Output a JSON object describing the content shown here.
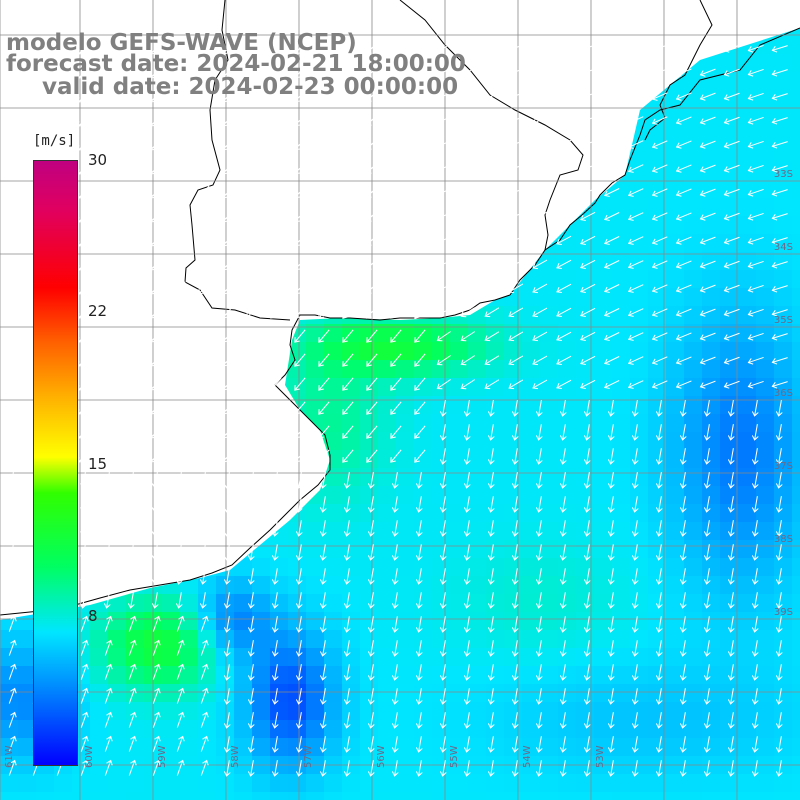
{
  "header": {
    "title": "modelo GEFS-WAVE (NCEP)",
    "forecast_date": "forecast date: 2024-02-21 18:00:00",
    "valid_date": "valid date: 2024-02-23 00:00:00"
  },
  "colorbar": {
    "unit": "[m/s]",
    "ticks": [
      "30",
      "22",
      "15",
      "8"
    ],
    "tick_values": [
      30,
      22,
      15,
      8
    ],
    "range": [
      0,
      30
    ],
    "colors": [
      "#0000ff",
      "#0096ff",
      "#00e6ff",
      "#00ff60",
      "#30ff00",
      "#ffff00",
      "#ff6000",
      "#ff0000",
      "#c00080"
    ]
  },
  "map": {
    "lat_labels": [
      "33S",
      "34S",
      "35S",
      "36S",
      "37S",
      "38S",
      "39S"
    ],
    "lon_labels": [
      "61W",
      "60W",
      "59W",
      "58W",
      "57W",
      "56W",
      "55W",
      "54W",
      "53W"
    ],
    "grid": true,
    "land_color": "#ffffff",
    "coast_color": "#000000",
    "arrow_color": "#ffffff"
  }
}
